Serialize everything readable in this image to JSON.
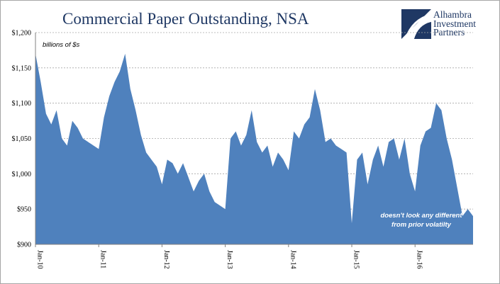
{
  "title": "Commercial Paper Outstanding, NSA",
  "logo": {
    "lines": [
      "Alhambra",
      "Investment",
      "Partners"
    ]
  },
  "colors": {
    "fill": "#4f81bd",
    "title": "#1f3864",
    "grid": "#a6a6a6"
  },
  "chart_data": {
    "type": "area",
    "title": "Commercial Paper Outstanding, NSA",
    "unit_label": "billions of $s",
    "xlabel": "",
    "ylabel": "",
    "ylim": [
      900,
      1200
    ],
    "yticks": [
      900,
      950,
      1000,
      1050,
      1100,
      1150,
      1200
    ],
    "ytick_labels": [
      "$900",
      "$950",
      "$1,000",
      "$1,050",
      "$1,100",
      "$1,150",
      "$1,200"
    ],
    "xlim": [
      "2010-01",
      "2016-12"
    ],
    "xticks": [
      "2010-01",
      "2011-01",
      "2012-01",
      "2013-01",
      "2014-01",
      "2015-01",
      "2016-01"
    ],
    "xtick_labels": [
      "Jan-10",
      "Jan-11",
      "Jan-12",
      "Jan-13",
      "Jan-14",
      "Jan-15",
      "Jan-16"
    ],
    "grid": true,
    "annotation": [
      "doesn't look any different",
      "from prior volatilty"
    ],
    "series": [
      {
        "x": [
          "2010-01",
          "2010-02",
          "2010-03",
          "2010-04",
          "2010-05",
          "2010-06",
          "2010-07",
          "2010-08",
          "2010-09",
          "2010-10",
          "2010-11",
          "2010-12",
          "2011-01",
          "2011-02",
          "2011-03",
          "2011-04",
          "2011-05",
          "2011-06",
          "2011-07",
          "2011-08",
          "2011-09",
          "2011-10",
          "2011-11",
          "2011-12",
          "2012-01",
          "2012-02",
          "2012-03",
          "2012-04",
          "2012-05",
          "2012-06",
          "2012-07",
          "2012-08",
          "2012-09",
          "2012-10",
          "2012-11",
          "2012-12",
          "2013-01",
          "2013-02",
          "2013-03",
          "2013-04",
          "2013-05",
          "2013-06",
          "2013-07",
          "2013-08",
          "2013-09",
          "2013-10",
          "2013-11",
          "2013-12",
          "2014-01",
          "2014-02",
          "2014-03",
          "2014-04",
          "2014-05",
          "2014-06",
          "2014-07",
          "2014-08",
          "2014-09",
          "2014-10",
          "2014-11",
          "2014-12",
          "2015-01",
          "2015-02",
          "2015-03",
          "2015-04",
          "2015-05",
          "2015-06",
          "2015-07",
          "2015-08",
          "2015-09",
          "2015-10",
          "2015-11",
          "2015-12",
          "2016-01",
          "2016-02",
          "2016-03",
          "2016-04",
          "2016-05",
          "2016-06",
          "2016-07",
          "2016-08",
          "2016-09",
          "2016-10",
          "2016-11",
          "2016-12"
        ],
        "values": [
          1170,
          1130,
          1085,
          1070,
          1090,
          1050,
          1040,
          1075,
          1065,
          1050,
          1045,
          1040,
          1035,
          1080,
          1110,
          1130,
          1145,
          1170,
          1120,
          1090,
          1055,
          1030,
          1020,
          1010,
          985,
          1020,
          1015,
          1000,
          1015,
          995,
          975,
          990,
          1000,
          975,
          960,
          955,
          950,
          1050,
          1060,
          1040,
          1055,
          1090,
          1045,
          1030,
          1040,
          1010,
          1030,
          1020,
          1005,
          1060,
          1050,
          1070,
          1080,
          1120,
          1090,
          1045,
          1050,
          1040,
          1035,
          1030,
          930,
          1020,
          1030,
          985,
          1020,
          1040,
          1010,
          1045,
          1050,
          1020,
          1050,
          1000,
          975,
          1040,
          1060,
          1065,
          1100,
          1090,
          1050,
          1020,
          980,
          940,
          950,
          940
        ]
      }
    ]
  }
}
